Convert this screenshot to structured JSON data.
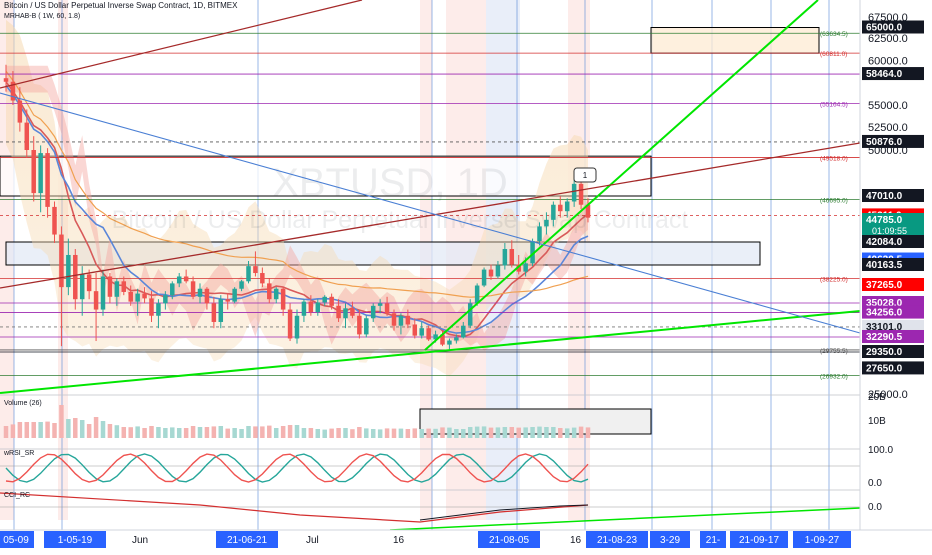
{
  "header": {
    "title": "Bitcoin / US Dollar Perpetual Inverse Swap Contract, 1D, BITMEX",
    "indicator": "MRHAB-B ( 1W, 60, 1.8)"
  },
  "watermark": {
    "symbol": "XBTUSD, 1D",
    "description": "Bitcoin / US Dollar Perpetual Inverse Swap Contract"
  },
  "pane_labels": {
    "volume": "Volume (26)",
    "wrsi": "wRSI_SR",
    "cci": "CCI_RC"
  },
  "colors": {
    "up": "#26a69a",
    "down": "#ef5350",
    "green_line": "#00e600",
    "red_line": "#a52a2a",
    "blue_line": "#4a7fd4",
    "last_price": "#089981",
    "red_box": "#ff0000",
    "purple_box": "#9c27b0",
    "dark_box": "#131722",
    "axis_blue": "#2962ff"
  },
  "chart_data": {
    "type": "candlestick",
    "symbol": "XBTUSD",
    "timeframe": "1D",
    "exchange": "BITMEX",
    "price_scale": [
      25000,
      67500
    ],
    "price_ticks": [
      67500,
      62500,
      60000,
      55000,
      52500,
      50000,
      25000
    ],
    "x_axis_labels": [
      {
        "label": "05-09",
        "style": "highlight"
      },
      {
        "label": "1-05-19",
        "style": "highlight"
      },
      {
        "label": "Jun",
        "style": "plain"
      },
      {
        "label": "21-06-21",
        "style": "highlight"
      },
      {
        "label": "Jul",
        "style": "plain"
      },
      {
        "label": "16",
        "style": "plain"
      },
      {
        "label": "21-08-05",
        "style": "highlight"
      },
      {
        "label": "16",
        "style": "plain"
      },
      {
        "label": "21-08-23",
        "style": "highlight"
      },
      {
        "label": "3-29",
        "style": "highlight"
      },
      {
        "label": "21-",
        "style": "highlight"
      },
      {
        "label": "21-09-17",
        "style": "highlight"
      },
      {
        "label": "1-09-27",
        "style": "highlight"
      }
    ],
    "price_boxes": [
      {
        "value": "65000.0",
        "style": "dark"
      },
      {
        "value": "58464.0",
        "style": "dark"
      },
      {
        "value": "50876.0",
        "style": "dark"
      },
      {
        "value": "47010.0",
        "style": "dark"
      },
      {
        "value": "45211.0",
        "style": "red"
      },
      {
        "value": "44785.0",
        "style": "last",
        "countdown": "01:09:55"
      },
      {
        "value": "42084.0",
        "style": "dark"
      },
      {
        "value": "40620.5",
        "style": "blue"
      },
      {
        "value": "40163.5",
        "style": "dark"
      },
      {
        "value": "37265.0",
        "style": "red"
      },
      {
        "value": "35028.0",
        "style": "purple"
      },
      {
        "value": "34256.0",
        "style": "purple"
      },
      {
        "value": "33101.0",
        "style": "grey"
      },
      {
        "value": "32290.5",
        "style": "purple"
      },
      {
        "value": "29350.0",
        "style": "dark"
      },
      {
        "value": "27650.0",
        "style": "dark"
      }
    ],
    "level_labels": [
      {
        "value": "63634.5",
        "color": "#2e7d32"
      },
      {
        "value": "60811.0",
        "color": "#d32f2f"
      },
      {
        "value": "55164.5",
        "color": "#9c27b0"
      },
      {
        "value": "49518.0",
        "color": "#d32f2f"
      },
      {
        "value": "46695.0",
        "color": "#2e7d32"
      },
      {
        "value": "38225.0",
        "color": "#d32f2f"
      },
      {
        "value": "29755.5",
        "color": "#555555"
      },
      {
        "value": "26932.0",
        "color": "#2e7d32"
      }
    ],
    "zones": [
      {
        "name": "target-zone",
        "price_range": [
          60800,
          65000
        ],
        "fill": "#fdebd3"
      },
      {
        "name": "resistance-zone",
        "price_range": [
          47010,
          49600
        ],
        "fill": "#ffffff"
      },
      {
        "name": "support-zone",
        "price_range": [
          40163.5,
          42084
        ],
        "fill": "#e3eaf6"
      }
    ],
    "candles": [
      [
        58000,
        59500,
        56500,
        57600
      ],
      [
        57600,
        58800,
        55000,
        55500
      ],
      [
        55500,
        57000,
        52000,
        53000
      ],
      [
        53000,
        54500,
        49500,
        50000
      ],
      [
        50000,
        51500,
        46500,
        47200
      ],
      [
        47200,
        50500,
        45500,
        49800
      ],
      [
        49800,
        50200,
        45000,
        46000
      ],
      [
        46000,
        46500,
        42000,
        43000
      ],
      [
        43000,
        44000,
        30500,
        37000
      ],
      [
        37000,
        42500,
        36000,
        41000
      ],
      [
        41000,
        41500,
        34500,
        35500
      ],
      [
        35500,
        40000,
        34000,
        38800
      ],
      [
        38800,
        39500,
        35500,
        36500
      ],
      [
        36500,
        39000,
        31500,
        34500
      ],
      [
        34500,
        39500,
        34000,
        38500
      ],
      [
        38500,
        39000,
        35000,
        35800
      ],
      [
        35800,
        38200,
        34800,
        37800
      ],
      [
        37800,
        38500,
        36000,
        36400
      ],
      [
        36400,
        37200,
        34800,
        35200
      ],
      [
        35200,
        36800,
        34000,
        36200
      ],
      [
        36200,
        37000,
        35000,
        35600
      ],
      [
        35600,
        36500,
        33500,
        34000
      ],
      [
        34000,
        35500,
        33000,
        35000
      ],
      [
        35000,
        36500,
        34500,
        36000
      ],
      [
        36000,
        37800,
        35500,
        37500
      ],
      [
        37500,
        39000,
        37000,
        38500
      ],
      [
        38500,
        39500,
        37500,
        37800
      ],
      [
        37800,
        38500,
        35500,
        35800
      ],
      [
        35800,
        37500,
        35000,
        36800
      ],
      [
        36800,
        37000,
        34500,
        35000
      ],
      [
        35000,
        35800,
        33000,
        33500
      ],
      [
        33500,
        36000,
        33000,
        35500
      ],
      [
        35500,
        36200,
        34500,
        35200
      ],
      [
        35200,
        37000,
        35000,
        36800
      ],
      [
        36800,
        38000,
        36500,
        37800
      ],
      [
        37800,
        40500,
        37500,
        40000
      ],
      [
        40000,
        41300,
        38500,
        39000
      ],
      [
        39000,
        39800,
        37000,
        37500
      ],
      [
        37500,
        38200,
        35000,
        35500
      ],
      [
        35500,
        37000,
        35000,
        36800
      ],
      [
        36800,
        37000,
        34000,
        34500
      ],
      [
        34500,
        35000,
        31500,
        32000
      ],
      [
        32000,
        34500,
        31000,
        34000
      ],
      [
        34000,
        35500,
        33500,
        35200
      ],
      [
        35200,
        36000,
        34000,
        34300
      ],
      [
        34300,
        35500,
        34000,
        35100
      ],
      [
        35100,
        36000,
        34800,
        35800
      ],
      [
        35800,
        36200,
        34500,
        34800
      ],
      [
        34800,
        35500,
        33500,
        33800
      ],
      [
        33800,
        35000,
        33000,
        34600
      ],
      [
        34600,
        35200,
        33800,
        34000
      ],
      [
        34000,
        34500,
        32000,
        32500
      ],
      [
        32500,
        34000,
        32200,
        33800
      ],
      [
        33800,
        35000,
        33500,
        34800
      ],
      [
        34800,
        35500,
        34200,
        35000
      ],
      [
        35000,
        35800,
        34000,
        34200
      ],
      [
        34200,
        34500,
        32800,
        33200
      ],
      [
        33200,
        34200,
        32500,
        34000
      ],
      [
        34000,
        34500,
        33000,
        33300
      ],
      [
        33300,
        33800,
        32000,
        32400
      ],
      [
        32400,
        33500,
        32000,
        33000
      ],
      [
        33000,
        33200,
        31500,
        31800
      ],
      [
        31800,
        32800,
        31200,
        32500
      ],
      [
        32500,
        32800,
        30500,
        30800
      ],
      [
        30800,
        32000,
        29800,
        31600
      ],
      [
        31600,
        32500,
        31000,
        32200
      ],
      [
        32200,
        33500,
        32000,
        33200
      ],
      [
        33200,
        35500,
        33000,
        35000
      ],
      [
        35000,
        37500,
        34800,
        37200
      ],
      [
        37200,
        39800,
        37000,
        39500
      ],
      [
        39500,
        40200,
        38000,
        38500
      ],
      [
        38500,
        40500,
        38200,
        40100
      ],
      [
        40100,
        42000,
        39500,
        41500
      ],
      [
        41500,
        42300,
        39800,
        40200
      ],
      [
        40200,
        41000,
        38800,
        39200
      ],
      [
        39200,
        40800,
        38500,
        40300
      ],
      [
        40300,
        42500,
        40000,
        42200
      ],
      [
        42200,
        44500,
        41800,
        44000
      ],
      [
        44000,
        45500,
        43000,
        44800
      ],
      [
        44800,
        46500,
        44000,
        46200
      ],
      [
        46200,
        47000,
        45000,
        45600
      ],
      [
        45600,
        46800,
        45000,
        46500
      ],
      [
        46500,
        48200,
        46000,
        47800
      ],
      [
        47800,
        48500,
        45800,
        46200
      ],
      [
        46200,
        46800,
        44500,
        45000
      ]
    ],
    "trendlines": [
      {
        "name": "green-support-fan",
        "color": "#00e600"
      },
      {
        "name": "green-long-support",
        "color": "#00e600"
      },
      {
        "name": "red-resistance",
        "color": "#a52a2a"
      },
      {
        "name": "blue-descending",
        "color": "#4a7fd4"
      }
    ],
    "volume_axis_labels": [
      "20B",
      "10B"
    ],
    "wrsi_axis_labels": [
      "100.0",
      "0.0"
    ],
    "cci_axis_labels": [
      "0.0"
    ],
    "callout_label": "1"
  }
}
